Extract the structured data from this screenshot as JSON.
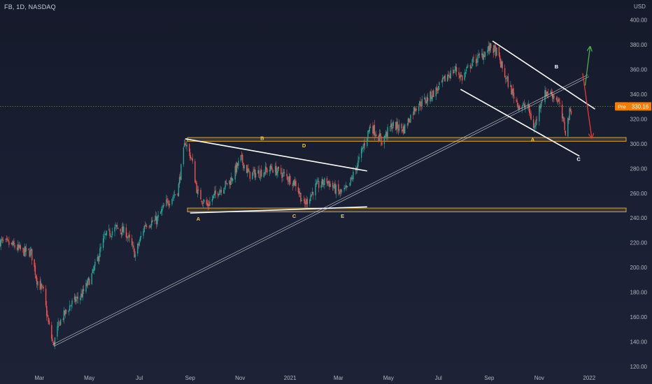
{
  "header": {
    "symbol": "FB, 1D, NASDAQ",
    "currency": "USD"
  },
  "price_tag": {
    "label": "Pre",
    "value": "330.16"
  },
  "colors": {
    "up": "#26a69a",
    "down": "#ef5350",
    "zone": "#d9a536",
    "line": "#ffffff",
    "green_arrow": "#4caf50",
    "red_arrow": "#e53935",
    "pre_tag": "#f57c00"
  },
  "wave_labels": [
    {
      "text": "B",
      "x": "2020-11-28",
      "y": 303,
      "color": "#f3c74b"
    },
    {
      "text": "D",
      "x": "2021-01-18",
      "y": 297,
      "color": "#f3c74b"
    },
    {
      "text": "A",
      "x": "2020-09-11",
      "y": 238,
      "color": "#f3c74b"
    },
    {
      "text": "C",
      "x": "2021-01-06",
      "y": 240,
      "color": "#f3c74b"
    },
    {
      "text": "E",
      "x": "2021-03-06",
      "y": 240,
      "color": "#f3c74b"
    },
    {
      "text": "B",
      "x": "2021-11-22",
      "y": 361,
      "color": "#ffffff"
    },
    {
      "text": "A",
      "x": "2021-10-24",
      "y": 302,
      "color": "#f3c74b"
    },
    {
      "text": "C",
      "x": "2021-12-19",
      "y": 286,
      "color": "#ffffff"
    }
  ],
  "chart_data": {
    "type": "candlestick",
    "xaxis": {
      "ticks": [
        "Mar",
        "May",
        "Jul",
        "Sep",
        "Nov",
        "2021",
        "Mar",
        "May",
        "Jul",
        "Sep",
        "Nov",
        "2022"
      ],
      "tick_dates": [
        "2020-03-01",
        "2020-05-01",
        "2020-07-01",
        "2020-09-01",
        "2020-11-01",
        "2021-01-01",
        "2021-03-01",
        "2021-05-01",
        "2021-07-01",
        "2021-09-01",
        "2021-11-01",
        "2022-01-01"
      ],
      "range": [
        "2020-01-13",
        "2022-02-15"
      ]
    },
    "yaxis": {
      "ticks": [
        "400.00",
        "380.00",
        "360.00",
        "340.00",
        "320.00",
        "300.00",
        "280.00",
        "260.00",
        "240.00",
        "220.00",
        "200.00",
        "180.00",
        "160.00",
        "140.00",
        "120.00"
      ],
      "range": [
        116,
        406
      ],
      "label": "USD"
    },
    "last_price": 330.16,
    "price_anchors": [
      [
        "2020-01-13",
        221
      ],
      [
        "2020-01-28",
        218
      ],
      [
        "2020-02-10",
        213
      ],
      [
        "2020-02-20",
        212
      ],
      [
        "2020-02-27",
        190
      ],
      [
        "2020-03-06",
        180
      ],
      [
        "2020-03-12",
        155
      ],
      [
        "2020-03-18",
        137
      ],
      [
        "2020-03-25",
        155
      ],
      [
        "2020-04-08",
        170
      ],
      [
        "2020-04-22",
        178
      ],
      [
        "2020-05-05",
        195
      ],
      [
        "2020-05-20",
        225
      ],
      [
        "2020-06-03",
        232
      ],
      [
        "2020-06-15",
        228
      ],
      [
        "2020-06-26",
        210
      ],
      [
        "2020-07-08",
        235
      ],
      [
        "2020-07-22",
        238
      ],
      [
        "2020-08-03",
        252
      ],
      [
        "2020-08-17",
        262
      ],
      [
        "2020-08-26",
        302
      ],
      [
        "2020-09-03",
        287
      ],
      [
        "2020-09-10",
        260
      ],
      [
        "2020-09-22",
        250
      ],
      [
        "2020-10-05",
        262
      ],
      [
        "2020-10-20",
        270
      ],
      [
        "2020-11-02",
        288
      ],
      [
        "2020-11-12",
        275
      ],
      [
        "2020-11-26",
        277
      ],
      [
        "2020-12-10",
        280
      ],
      [
        "2020-12-24",
        275
      ],
      [
        "2021-01-08",
        268
      ],
      [
        "2021-01-18",
        250
      ],
      [
        "2021-02-01",
        265
      ],
      [
        "2021-02-15",
        270
      ],
      [
        "2021-03-02",
        260
      ],
      [
        "2021-03-12",
        263
      ],
      [
        "2021-03-25",
        285
      ],
      [
        "2021-04-09",
        315
      ],
      [
        "2021-04-23",
        302
      ],
      [
        "2021-05-05",
        315
      ],
      [
        "2021-05-20",
        312
      ],
      [
        "2021-06-03",
        330
      ],
      [
        "2021-06-17",
        336
      ],
      [
        "2021-07-01",
        345
      ],
      [
        "2021-07-12",
        355
      ],
      [
        "2021-07-22",
        360
      ],
      [
        "2021-07-30",
        353
      ],
      [
        "2021-08-10",
        365
      ],
      [
        "2021-08-24",
        372
      ],
      [
        "2021-09-03",
        378
      ],
      [
        "2021-09-10",
        374
      ],
      [
        "2021-09-20",
        355
      ],
      [
        "2021-09-30",
        340
      ],
      [
        "2021-10-08",
        330
      ],
      [
        "2021-10-18",
        330
      ],
      [
        "2021-10-26",
        312
      ],
      [
        "2021-11-03",
        335
      ],
      [
        "2021-11-10",
        342
      ],
      [
        "2021-11-17",
        340
      ],
      [
        "2021-11-24",
        335
      ],
      [
        "2021-11-30",
        318
      ],
      [
        "2021-12-03",
        310
      ],
      [
        "2021-12-08",
        325
      ],
      [
        "2021-12-13",
        332
      ]
    ],
    "zones": [
      {
        "name": "Resistance/Support zone",
        "from": 302,
        "to": 305
      },
      {
        "name": "Support zone",
        "from": 245,
        "to": 248
      }
    ],
    "lines": [
      {
        "name": "Triangle upper",
        "from": [
          "2020-08-26",
          304
        ],
        "to": [
          "2021-04-05",
          278
        ]
      },
      {
        "name": "Triangle lower",
        "from": [
          "2020-09-01",
          244
        ],
        "to": [
          "2021-04-05",
          249
        ]
      },
      {
        "name": "Trendline",
        "from": [
          "2020-03-18",
          137
        ],
        "to": [
          "2021-12-31",
          355
        ],
        "double": true
      },
      {
        "name": "Channel upper",
        "from": [
          "2021-09-05",
          383
        ],
        "to": [
          "2022-01-08",
          328
        ]
      },
      {
        "name": "Channel lower",
        "from": [
          "2021-07-28",
          344
        ],
        "to": [
          "2021-12-20",
          290
        ]
      },
      {
        "name": "Bull arrow",
        "from": [
          "2021-12-27",
          347
        ],
        "to": [
          "2022-01-02",
          378
        ],
        "arrow": true,
        "color": "#4caf50"
      },
      {
        "name": "Bear arrow",
        "from": [
          "2021-12-24",
          357
        ],
        "to": [
          "2022-01-04",
          305
        ],
        "arrow": true,
        "color": "#e53935"
      }
    ]
  }
}
